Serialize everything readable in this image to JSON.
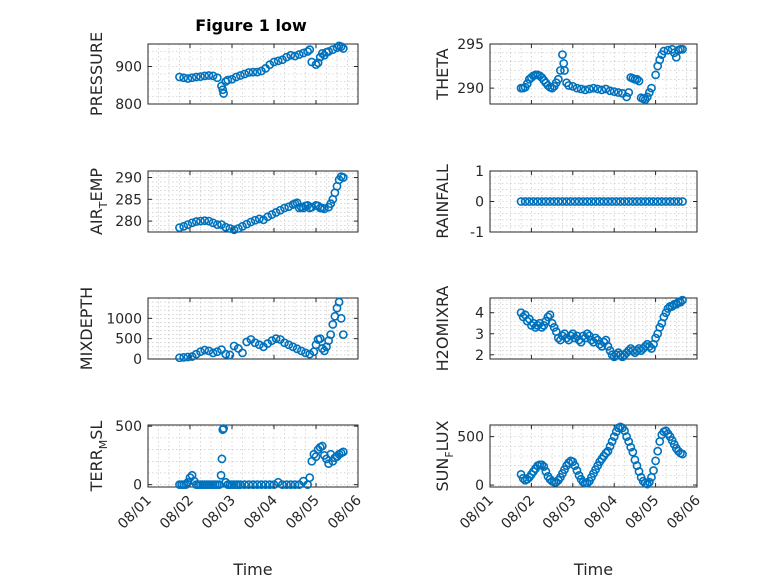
{
  "figure": {
    "title": "Figure 1 low",
    "xlabel": "Time",
    "marker_color": "#0072BD",
    "time_ticks": [
      "08/01",
      "08/02",
      "08/03",
      "08/04",
      "08/05",
      "08/06"
    ],
    "time_tick_values": [
      1,
      2,
      3,
      4,
      5,
      6
    ],
    "xlim": [
      1,
      6
    ]
  },
  "chart_data": [
    {
      "type": "scatter",
      "ylabel": "PRESSURE",
      "ylabel_sub": "",
      "ylim": [
        800,
        960
      ],
      "yticks": [
        800,
        900
      ],
      "x": [
        1.75,
        1.85,
        1.95,
        2.05,
        2.15,
        2.25,
        2.35,
        2.45,
        2.55,
        2.65,
        2.75,
        2.78,
        2.8,
        2.85,
        2.9,
        3.0,
        3.1,
        3.2,
        3.3,
        3.4,
        3.5,
        3.6,
        3.7,
        3.8,
        3.9,
        4.0,
        4.1,
        4.2,
        4.3,
        4.4,
        4.5,
        4.6,
        4.7,
        4.8,
        4.85,
        4.9,
        5.0,
        5.05,
        5.1,
        5.15,
        5.2,
        5.25,
        5.3,
        5.4,
        5.5,
        5.55,
        5.6,
        5.65
      ],
      "y": [
        872,
        870,
        868,
        870,
        872,
        873,
        875,
        876,
        875,
        870,
        848,
        838,
        828,
        860,
        864,
        866,
        872,
        876,
        880,
        884,
        885,
        885,
        888,
        895,
        905,
        912,
        915,
        918,
        925,
        930,
        928,
        932,
        936,
        940,
        945,
        912,
        905,
        910,
        925,
        935,
        930,
        938,
        940,
        945,
        950,
        955,
        953,
        948
      ]
    },
    {
      "type": "scatter",
      "ylabel": "THETA",
      "ylabel_sub": "",
      "ylim": [
        288.2,
        295
      ],
      "yticks": [
        290,
        295
      ],
      "x": [
        1.75,
        1.8,
        1.85,
        1.9,
        1.95,
        2.0,
        2.05,
        2.1,
        2.15,
        2.2,
        2.25,
        2.3,
        2.35,
        2.4,
        2.45,
        2.5,
        2.55,
        2.6,
        2.65,
        2.7,
        2.75,
        2.78,
        2.8,
        2.85,
        2.9,
        3.0,
        3.1,
        3.2,
        3.3,
        3.4,
        3.5,
        3.6,
        3.7,
        3.8,
        3.9,
        4.0,
        4.1,
        4.2,
        4.3,
        4.35,
        4.4,
        4.45,
        4.5,
        4.55,
        4.6,
        4.65,
        4.7,
        4.75,
        4.8,
        4.85,
        4.9,
        5.0,
        5.05,
        5.1,
        5.15,
        5.2,
        5.3,
        5.4,
        5.45,
        5.5,
        5.55,
        5.6,
        5.65
      ],
      "y": [
        290.0,
        290.0,
        290.1,
        290.5,
        291.0,
        291.2,
        291.4,
        291.5,
        291.5,
        291.4,
        291.2,
        290.9,
        290.6,
        290.3,
        290.1,
        290.0,
        290.2,
        290.6,
        291.0,
        292.0,
        293.8,
        292.8,
        292.0,
        290.6,
        290.3,
        290.2,
        290.0,
        289.9,
        289.8,
        289.9,
        290.0,
        289.9,
        289.8,
        289.9,
        289.7,
        289.6,
        289.5,
        289.4,
        289.0,
        289.5,
        291.2,
        291.1,
        291.0,
        291.0,
        290.8,
        288.9,
        288.8,
        288.7,
        289.0,
        289.5,
        290.0,
        291.5,
        292.5,
        293.2,
        293.8,
        294.2,
        294.3,
        294.4,
        294.0,
        293.5,
        294.3,
        294.4,
        294.4
      ]
    },
    {
      "type": "scatter",
      "ylabel": "AIR",
      "ylabel_sub": "T",
      "ylabel_rest": "EMP",
      "ylim": [
        277.5,
        291.5
      ],
      "yticks": [
        280,
        285,
        290
      ],
      "x": [
        1.75,
        1.85,
        1.95,
        2.05,
        2.15,
        2.25,
        2.35,
        2.45,
        2.55,
        2.65,
        2.75,
        2.85,
        2.95,
        3.05,
        3.15,
        3.25,
        3.35,
        3.45,
        3.55,
        3.65,
        3.75,
        3.85,
        3.95,
        4.05,
        4.15,
        4.25,
        4.35,
        4.45,
        4.5,
        4.55,
        4.6,
        4.65,
        4.7,
        4.75,
        4.8,
        4.85,
        4.9,
        5.0,
        5.05,
        5.1,
        5.15,
        5.2,
        5.3,
        5.35,
        5.4,
        5.45,
        5.5,
        5.55,
        5.6,
        5.65
      ],
      "y": [
        278.5,
        278.8,
        279.2,
        279.6,
        279.9,
        280.0,
        280.1,
        280.0,
        279.6,
        279.2,
        279.2,
        278.6,
        278.3,
        278.0,
        278.3,
        278.8,
        279.3,
        279.8,
        280.2,
        280.5,
        280.3,
        281.0,
        281.5,
        282.0,
        282.5,
        283.0,
        283.3,
        283.8,
        284.0,
        284.2,
        283.0,
        283.2,
        283.0,
        283.5,
        283.6,
        283.0,
        283.2,
        283.6,
        283.5,
        283.0,
        283.0,
        282.8,
        283.2,
        284.0,
        285.0,
        286.5,
        288.0,
        289.5,
        290.2,
        290.0
      ]
    },
    {
      "type": "scatter",
      "ylabel": "RAINFALL",
      "ylabel_sub": "",
      "ylim": [
        -1,
        1
      ],
      "yticks": [
        -1,
        0,
        1
      ],
      "x": [
        1.75,
        1.85,
        1.95,
        2.05,
        2.15,
        2.25,
        2.35,
        2.45,
        2.55,
        2.65,
        2.75,
        2.85,
        2.95,
        3.05,
        3.15,
        3.25,
        3.35,
        3.45,
        3.55,
        3.65,
        3.75,
        3.85,
        3.95,
        4.05,
        4.15,
        4.25,
        4.35,
        4.45,
        4.55,
        4.65,
        4.75,
        4.85,
        4.95,
        5.05,
        5.15,
        5.25,
        5.35,
        5.45,
        5.55,
        5.65
      ],
      "y": [
        0,
        0,
        0,
        0,
        0,
        0,
        0,
        0,
        0,
        0,
        0,
        0,
        0,
        0,
        0,
        0,
        0,
        0,
        0,
        0,
        0,
        0,
        0,
        0,
        0,
        0,
        0,
        0,
        0,
        0,
        0,
        0,
        0,
        0,
        0,
        0,
        0,
        0,
        0,
        0
      ]
    },
    {
      "type": "scatter",
      "ylabel": "MIXDEPTH",
      "ylabel_sub": "",
      "ylim": [
        0,
        1500
      ],
      "yticks": [
        0,
        500,
        1000
      ],
      "x": [
        1.75,
        1.85,
        1.95,
        2.05,
        2.15,
        2.25,
        2.35,
        2.45,
        2.55,
        2.65,
        2.75,
        2.85,
        2.95,
        3.05,
        3.15,
        3.25,
        3.35,
        3.45,
        3.55,
        3.65,
        3.75,
        3.85,
        3.95,
        4.05,
        4.15,
        4.25,
        4.35,
        4.45,
        4.55,
        4.65,
        4.75,
        4.85,
        4.95,
        5.0,
        5.05,
        5.1,
        5.15,
        5.2,
        5.25,
        5.3,
        5.35,
        5.4,
        5.45,
        5.5,
        5.55,
        5.6,
        5.65
      ],
      "y": [
        30,
        40,
        50,
        60,
        120,
        180,
        220,
        200,
        150,
        180,
        230,
        120,
        100,
        320,
        260,
        150,
        420,
        480,
        400,
        350,
        300,
        380,
        450,
        500,
        480,
        400,
        350,
        300,
        250,
        200,
        150,
        120,
        180,
        350,
        480,
        500,
        260,
        200,
        300,
        450,
        600,
        850,
        1050,
        1250,
        1400,
        1000,
        600
      ]
    },
    {
      "type": "scatter",
      "ylabel": "H2OMIXRA",
      "ylabel_sub": "",
      "ylim": [
        1.8,
        4.7
      ],
      "yticks": [
        2,
        3,
        4
      ],
      "x": [
        1.75,
        1.8,
        1.85,
        1.9,
        1.95,
        2.0,
        2.05,
        2.1,
        2.15,
        2.2,
        2.25,
        2.3,
        2.35,
        2.4,
        2.45,
        2.5,
        2.55,
        2.6,
        2.65,
        2.7,
        2.75,
        2.8,
        2.85,
        2.9,
        2.95,
        3.0,
        3.05,
        3.1,
        3.15,
        3.2,
        3.25,
        3.3,
        3.35,
        3.4,
        3.45,
        3.5,
        3.55,
        3.6,
        3.65,
        3.7,
        3.75,
        3.8,
        3.85,
        3.9,
        3.95,
        4.0,
        4.05,
        4.1,
        4.15,
        4.2,
        4.25,
        4.3,
        4.35,
        4.4,
        4.45,
        4.5,
        4.55,
        4.6,
        4.65,
        4.7,
        4.75,
        4.8,
        4.85,
        4.9,
        4.95,
        5.0,
        5.05,
        5.1,
        5.15,
        5.2,
        5.25,
        5.3,
        5.35,
        5.4,
        5.45,
        5.5,
        5.55,
        5.6,
        5.65
      ],
      "y": [
        4.0,
        3.8,
        3.9,
        3.6,
        3.7,
        3.4,
        3.5,
        3.3,
        3.4,
        3.5,
        3.3,
        3.4,
        3.6,
        3.8,
        3.9,
        3.5,
        3.3,
        3.1,
        2.8,
        2.7,
        2.9,
        3.0,
        2.8,
        2.7,
        2.9,
        3.0,
        2.8,
        2.9,
        2.7,
        2.6,
        2.9,
        2.8,
        3.0,
        2.9,
        2.7,
        2.6,
        2.8,
        2.7,
        2.5,
        2.4,
        2.6,
        2.7,
        2.4,
        2.2,
        2.0,
        1.9,
        2.0,
        2.1,
        2.0,
        1.9,
        2.0,
        2.1,
        2.2,
        2.3,
        2.2,
        2.1,
        2.2,
        2.3,
        2.2,
        2.3,
        2.4,
        2.5,
        2.4,
        2.3,
        2.5,
        2.8,
        3.0,
        3.3,
        3.5,
        3.8,
        4.0,
        4.2,
        4.3,
        4.3,
        4.4,
        4.4,
        4.5,
        4.5,
        4.6
      ]
    },
    {
      "type": "scatter",
      "ylabel": "TERR",
      "ylabel_sub": "M",
      "ylabel_rest": "SL",
      "ylim": [
        -20,
        510
      ],
      "yticks": [
        0,
        500
      ],
      "x": [
        1.75,
        1.8,
        1.85,
        1.9,
        1.95,
        2.0,
        2.05,
        2.1,
        2.15,
        2.2,
        2.25,
        2.3,
        2.35,
        2.4,
        2.45,
        2.5,
        2.55,
        2.6,
        2.65,
        2.7,
        2.74,
        2.76,
        2.78,
        2.8,
        2.85,
        2.9,
        2.95,
        3.0,
        3.05,
        3.1,
        3.15,
        3.2,
        3.3,
        3.4,
        3.5,
        3.6,
        3.7,
        3.8,
        3.9,
        4.0,
        4.1,
        4.2,
        4.3,
        4.4,
        4.5,
        4.6,
        4.7,
        4.8,
        4.85,
        4.9,
        4.95,
        5.0,
        5.05,
        5.1,
        5.15,
        5.2,
        5.25,
        5.3,
        5.35,
        5.4,
        5.45,
        5.5,
        5.55,
        5.6,
        5.65
      ],
      "y": [
        0,
        0,
        0,
        0,
        20,
        60,
        80,
        30,
        0,
        0,
        0,
        0,
        0,
        0,
        0,
        0,
        0,
        0,
        0,
        0,
        80,
        220,
        470,
        480,
        20,
        0,
        0,
        0,
        0,
        0,
        0,
        0,
        0,
        0,
        0,
        0,
        0,
        0,
        0,
        0,
        20,
        0,
        0,
        0,
        0,
        0,
        30,
        0,
        60,
        200,
        260,
        240,
        300,
        320,
        330,
        250,
        220,
        180,
        260,
        200,
        230,
        240,
        260,
        270,
        280
      ]
    },
    {
      "type": "scatter",
      "ylabel": "SUN",
      "ylabel_sub": "F",
      "ylabel_rest": "LUX",
      "ylim": [
        -20,
        620
      ],
      "yticks": [
        0,
        500
      ],
      "x": [
        1.75,
        1.8,
        1.85,
        1.9,
        1.95,
        2.0,
        2.05,
        2.1,
        2.15,
        2.2,
        2.25,
        2.3,
        2.35,
        2.4,
        2.45,
        2.5,
        2.55,
        2.6,
        2.65,
        2.7,
        2.75,
        2.8,
        2.85,
        2.9,
        2.95,
        3.0,
        3.05,
        3.1,
        3.15,
        3.2,
        3.25,
        3.3,
        3.35,
        3.4,
        3.45,
        3.5,
        3.55,
        3.6,
        3.65,
        3.7,
        3.75,
        3.8,
        3.85,
        3.9,
        3.95,
        4.0,
        4.05,
        4.1,
        4.15,
        4.2,
        4.25,
        4.3,
        4.35,
        4.4,
        4.45,
        4.5,
        4.55,
        4.6,
        4.65,
        4.7,
        4.75,
        4.8,
        4.85,
        4.9,
        4.95,
        5.0,
        5.05,
        5.1,
        5.15,
        5.2,
        5.25,
        5.3,
        5.35,
        5.4,
        5.45,
        5.5,
        5.55,
        5.6,
        5.65
      ],
      "y": [
        110,
        70,
        50,
        60,
        80,
        110,
        140,
        170,
        200,
        210,
        210,
        190,
        140,
        90,
        60,
        40,
        30,
        30,
        50,
        80,
        120,
        160,
        200,
        230,
        250,
        240,
        200,
        150,
        100,
        60,
        30,
        20,
        20,
        40,
        80,
        120,
        160,
        200,
        240,
        270,
        300,
        330,
        350,
        400,
        450,
        500,
        550,
        590,
        600,
        590,
        560,
        500,
        450,
        390,
        340,
        260,
        200,
        140,
        80,
        40,
        20,
        10,
        30,
        80,
        150,
        250,
        350,
        450,
        520,
        550,
        560,
        530,
        500,
        460,
        420,
        380,
        350,
        330,
        320
      ]
    }
  ]
}
